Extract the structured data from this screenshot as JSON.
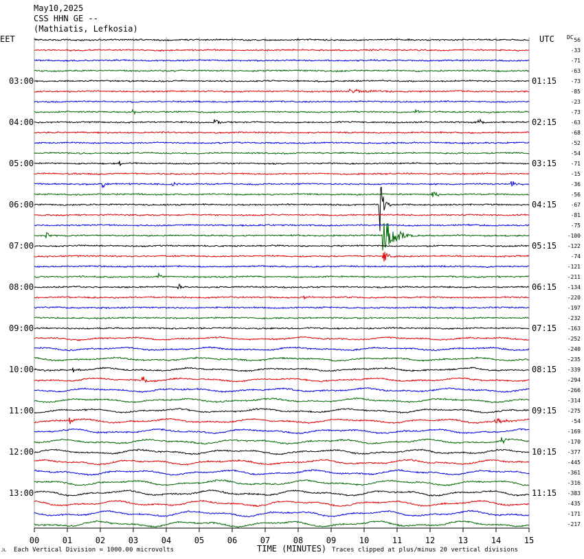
{
  "header": {
    "date": "May10,2025",
    "station": "CSS HHN GE --",
    "location": "(Mathiatis, Lefkosia)"
  },
  "labels": {
    "left_tz": "EET",
    "right_tz": "UTC",
    "dc": "DC"
  },
  "footer": {
    "scale": "Each Vertical Division = 1000.00 microvolts",
    "xlabel": "TIME (MINUTES)",
    "clip": "Traces clipped at plus/minus 20 vertical divisions",
    "corner": "JL"
  },
  "chart_data": {
    "type": "line",
    "title": "CSS HHN GE --",
    "xlabel": "TIME (MINUTES)",
    "xlim": [
      0,
      15
    ],
    "x_ticks": [
      "00",
      "01",
      "02",
      "03",
      "04",
      "05",
      "06",
      "07",
      "08",
      "09",
      "10",
      "11",
      "12",
      "13",
      "14",
      "15"
    ],
    "left_hour_labels": [
      "03:00",
      "04:00",
      "05:00",
      "06:00",
      "07:00",
      "08:00",
      "09:00",
      "10:00",
      "11:00",
      "12:00",
      "13:00"
    ],
    "right_hour_labels": [
      "01:15",
      "02:15",
      "03:15",
      "04:15",
      "05:15",
      "06:15",
      "07:15",
      "08:15",
      "09:15",
      "10:15",
      "11:15"
    ],
    "trace_colors": [
      "#000000",
      "#dd0000",
      "#0000dd",
      "#006600"
    ],
    "dc_offsets": [
      56,
      -33,
      -71,
      -63,
      -73,
      -85,
      -23,
      -73,
      -63,
      -68,
      -52,
      -54,
      -71,
      -15,
      -36,
      -56,
      -67,
      -81,
      -75,
      -100,
      -122,
      -74,
      -121,
      -211,
      -134,
      -220,
      -197,
      -232,
      -163,
      -252,
      -240,
      -235,
      -339,
      -294,
      -266,
      -314,
      -275,
      -54,
      -169,
      -170,
      -377,
      -445,
      -361,
      -316,
      -383,
      -435,
      -171,
      -217
    ],
    "events": [
      {
        "trace": 5,
        "minute": 9.6,
        "amplitude": 3.0,
        "duration": 2.5
      },
      {
        "trace": 7,
        "minute": 3.0,
        "amplitude": 4.0,
        "duration": 0.3
      },
      {
        "trace": 7,
        "minute": 11.6,
        "amplitude": 4.0,
        "duration": 0.3
      },
      {
        "trace": 8,
        "minute": 5.5,
        "amplitude": 7.0,
        "duration": 0.4
      },
      {
        "trace": 8,
        "minute": 13.5,
        "amplitude": 5.0,
        "duration": 0.3
      },
      {
        "trace": 12,
        "minute": 2.6,
        "amplitude": 5.0,
        "duration": 0.2
      },
      {
        "trace": 14,
        "minute": 2.1,
        "amplitude": 6.0,
        "duration": 0.4
      },
      {
        "trace": 14,
        "minute": 4.2,
        "amplitude": 4.0,
        "duration": 0.4
      },
      {
        "trace": 14,
        "minute": 14.5,
        "amplitude": 5.0,
        "duration": 0.5
      },
      {
        "trace": 15,
        "minute": 12.1,
        "amplitude": 6.0,
        "duration": 0.4
      },
      {
        "trace": 16,
        "minute": 10.5,
        "amplitude": 40.0,
        "duration": 0.4
      },
      {
        "trace": 19,
        "minute": 10.6,
        "amplitude": 30.0,
        "duration": 1.2
      },
      {
        "trace": 19,
        "minute": 0.4,
        "amplitude": 5.0,
        "duration": 0.3
      },
      {
        "trace": 21,
        "minute": 10.6,
        "amplitude": 10.0,
        "duration": 0.6
      },
      {
        "trace": 23,
        "minute": 3.8,
        "amplitude": 5.0,
        "duration": 0.3
      },
      {
        "trace": 24,
        "minute": 4.4,
        "amplitude": 5.0,
        "duration": 0.3
      },
      {
        "trace": 25,
        "minute": 8.2,
        "amplitude": 5.0,
        "duration": 0.3
      },
      {
        "trace": 32,
        "minute": 1.2,
        "amplitude": 6.0,
        "duration": 0.4
      },
      {
        "trace": 33,
        "minute": 3.3,
        "amplitude": 9.0,
        "duration": 0.2
      },
      {
        "trace": 37,
        "minute": 1.1,
        "amplitude": 6.0,
        "duration": 0.3
      },
      {
        "trace": 37,
        "minute": 14.0,
        "amplitude": 4.0,
        "duration": 1.0
      },
      {
        "trace": 39,
        "minute": 14.2,
        "amplitude": 6.0,
        "duration": 0.4
      }
    ]
  }
}
